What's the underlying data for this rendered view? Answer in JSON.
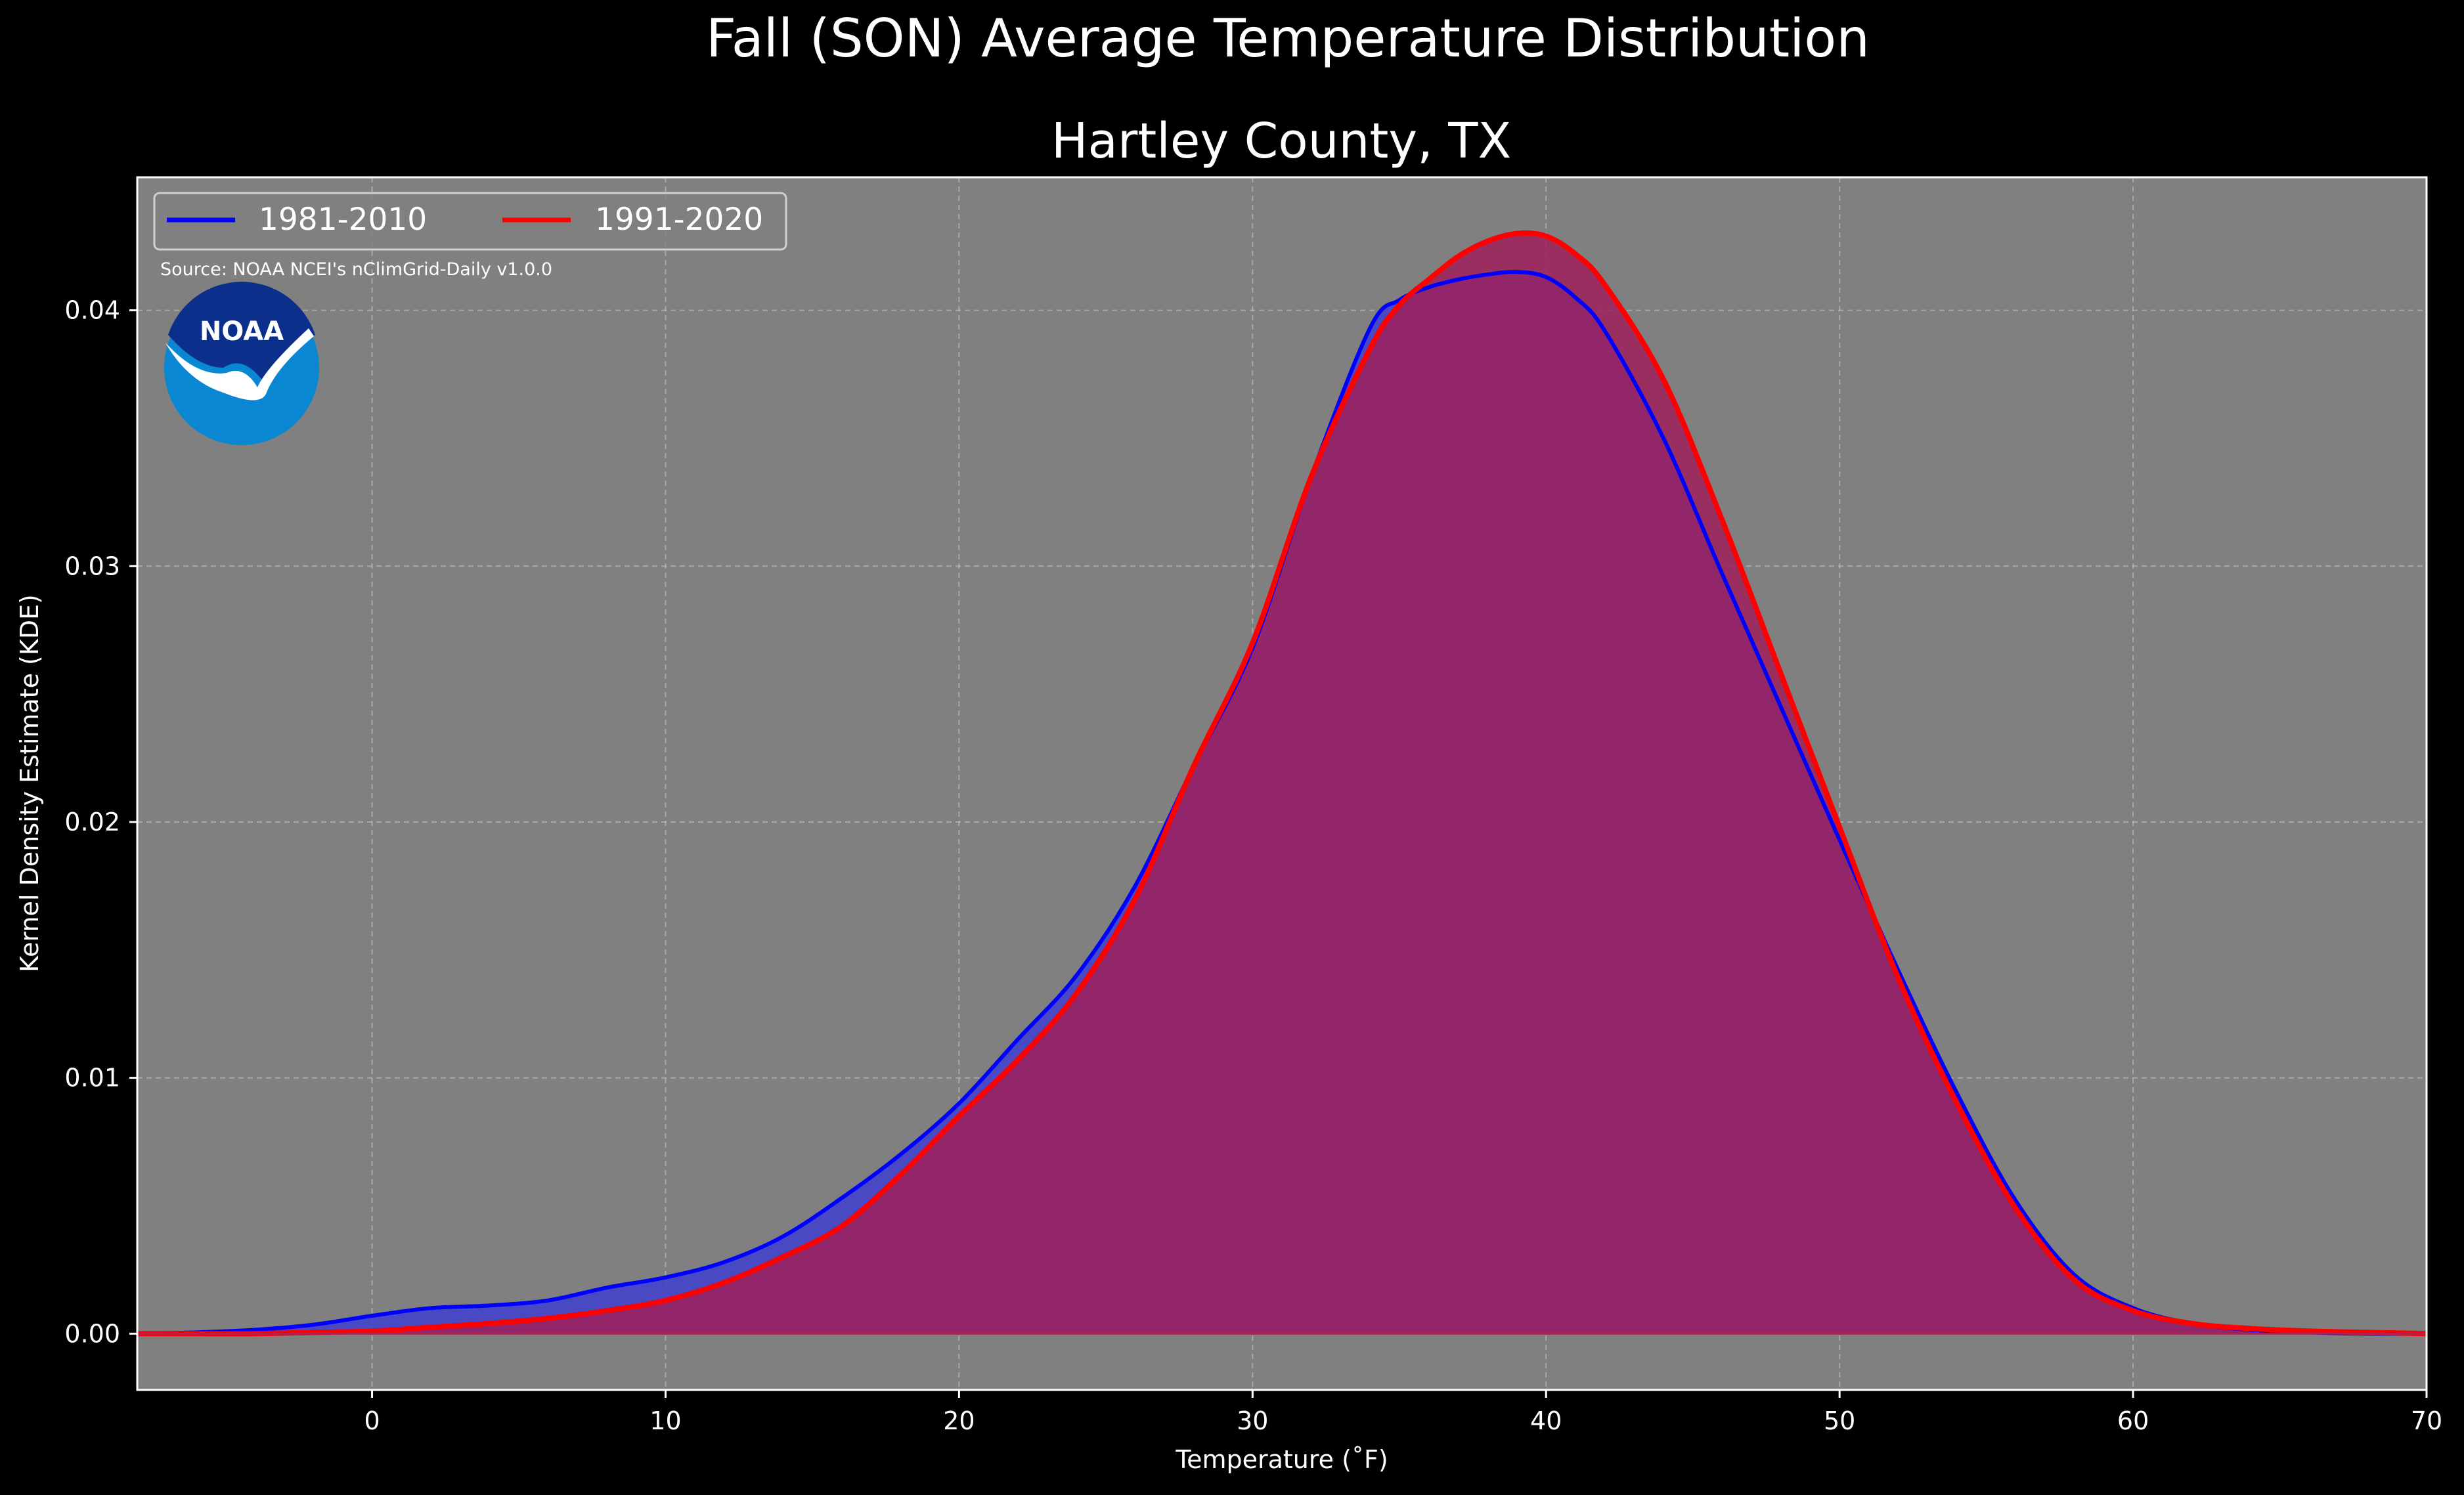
{
  "figure": {
    "suptitle": "Fall (SON) Average Temperature Distribution",
    "title": "Hartley County, TX",
    "source": "Source: NOAA NCEI's nClimGrid-Daily v1.0.0",
    "logo_text": "NOAA"
  },
  "colors": {
    "background": "#000000",
    "plot_bg": "#808080",
    "series_1981": "#0000ff",
    "series_1991": "#ff0000",
    "fill_1991": "#a0205a",
    "fill_1981": "#4040d0",
    "logo_outer": "#0a87d2",
    "logo_inner": "#0b2f8a"
  },
  "chart_data": {
    "type": "area",
    "xlabel": "Temperature ($^\\circ$F)",
    "xlabel_display": "Temperature (˚F)",
    "ylabel": "Kernel Density Estimate (KDE)",
    "xlim": [
      -8,
      70
    ],
    "ylim": [
      -0.0022,
      0.0452
    ],
    "xticks": [
      0,
      10,
      20,
      30,
      40,
      50,
      60,
      70
    ],
    "yticks": [
      0.0,
      0.01,
      0.02,
      0.03,
      0.04
    ],
    "ytick_labels": [
      "0.00",
      "0.01",
      "0.02",
      "0.03",
      "0.04"
    ],
    "grid": true,
    "legend_position": "top-left",
    "series": [
      {
        "name": "1981-2010",
        "color": "#0000ff",
        "x": [
          -8,
          -6,
          -4,
          -2,
          0,
          2,
          4,
          6,
          8,
          10,
          12,
          14,
          16,
          18,
          20,
          22,
          24,
          26,
          28,
          30,
          32,
          34,
          35,
          36,
          37,
          38,
          39,
          40,
          41,
          42,
          44,
          46,
          48,
          50,
          52,
          54,
          56,
          58,
          60,
          62,
          64,
          66,
          68,
          70
        ],
        "y": [
          0.0,
          5e-05,
          0.00015,
          0.00035,
          0.0007,
          0.001,
          0.0011,
          0.0013,
          0.0018,
          0.0022,
          0.0028,
          0.0038,
          0.0053,
          0.007,
          0.009,
          0.0115,
          0.014,
          0.0175,
          0.0222,
          0.0268,
          0.0335,
          0.0393,
          0.0404,
          0.0409,
          0.0412,
          0.0414,
          0.0415,
          0.0413,
          0.0405,
          0.0392,
          0.035,
          0.0297,
          0.0245,
          0.0193,
          0.0142,
          0.0094,
          0.0052,
          0.0023,
          0.001,
          0.0004,
          0.00015,
          5e-05,
          0.0,
          0.0
        ]
      },
      {
        "name": "1991-2020",
        "color": "#ff0000",
        "x": [
          -8,
          -6,
          -4,
          -2,
          0,
          2,
          4,
          6,
          8,
          10,
          12,
          14,
          16,
          18,
          20,
          22,
          24,
          26,
          28,
          30,
          32,
          34,
          35,
          36,
          37,
          38,
          39,
          40,
          41,
          42,
          44,
          46,
          48,
          50,
          52,
          54,
          56,
          58,
          60,
          62,
          64,
          66,
          68,
          70
        ],
        "y": [
          0.0,
          0.0,
          0.0,
          5e-05,
          0.0001,
          0.00025,
          0.0004,
          0.0006,
          0.0009,
          0.0013,
          0.002,
          0.003,
          0.0042,
          0.0062,
          0.0085,
          0.0107,
          0.0133,
          0.017,
          0.0222,
          0.027,
          0.0335,
          0.0385,
          0.0402,
          0.0412,
          0.0421,
          0.0427,
          0.043,
          0.0429,
          0.0422,
          0.041,
          0.0373,
          0.0318,
          0.0258,
          0.0198,
          0.0139,
          0.009,
          0.0049,
          0.0021,
          0.0009,
          0.0004,
          0.0002,
          0.0001,
          5e-05,
          0.0
        ]
      }
    ]
  }
}
